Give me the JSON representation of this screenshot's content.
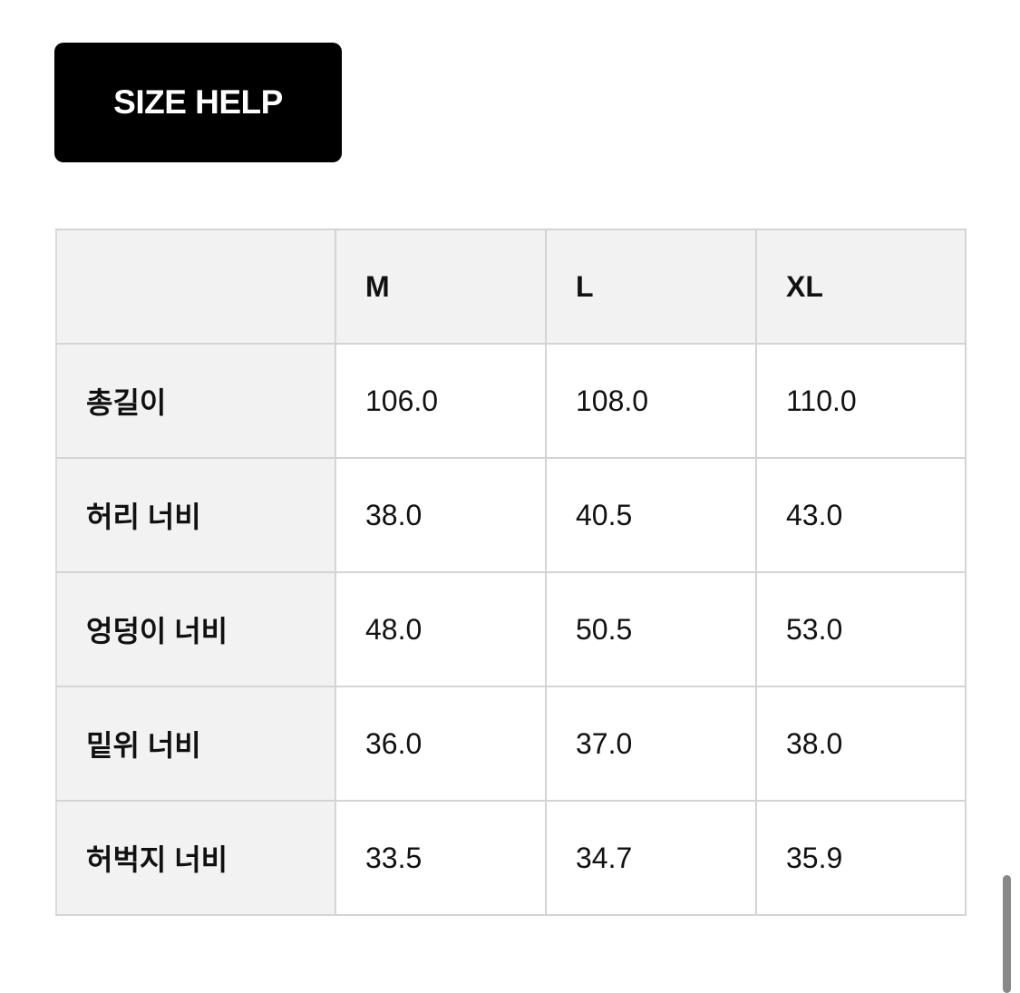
{
  "button": {
    "label": "SIZE HELP"
  },
  "table": {
    "headers": [
      "",
      "M",
      "L",
      "XL"
    ],
    "rows": [
      {
        "label": "총길이",
        "values": [
          "106.0",
          "108.0",
          "110.0"
        ]
      },
      {
        "label": "허리 너비",
        "values": [
          "38.0",
          "40.5",
          "43.0"
        ]
      },
      {
        "label": "엉덩이 너비",
        "values": [
          "48.0",
          "50.5",
          "53.0"
        ]
      },
      {
        "label": "밑위 너비",
        "values": [
          "36.0",
          "37.0",
          "38.0"
        ]
      },
      {
        "label": "허벅지 너비",
        "values": [
          "33.5",
          "34.7",
          "35.9"
        ]
      }
    ]
  }
}
